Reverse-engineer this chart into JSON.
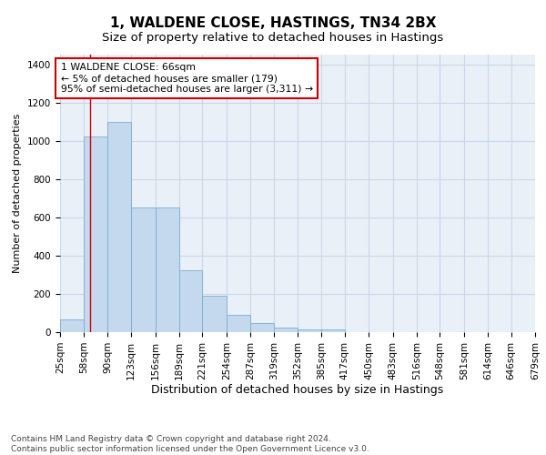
{
  "title": "1, WALDENE CLOSE, HASTINGS, TN34 2BX",
  "subtitle": "Size of property relative to detached houses in Hastings",
  "xlabel": "Distribution of detached houses by size in Hastings",
  "ylabel": "Number of detached properties",
  "bar_color": "#c5d9ee",
  "bar_edge_color": "#7aaed0",
  "grid_color": "#c8d8e8",
  "background_color": "#eaf0f8",
  "vline_x": 66,
  "vline_color": "#cc0000",
  "annotation_line1": "1 WALDENE CLOSE: 66sqm",
  "annotation_line2": "← 5% of detached houses are smaller (179)",
  "annotation_line3": "95% of semi-detached houses are larger (3,311) →",
  "annotation_box_color": "#ffffff",
  "annotation_box_edge": "#cc0000",
  "bins": [
    25,
    58,
    90,
    123,
    156,
    189,
    221,
    254,
    287,
    319,
    352,
    385,
    417,
    450,
    483,
    516,
    548,
    581,
    614,
    646,
    679
  ],
  "bar_heights": [
    65,
    1020,
    1100,
    650,
    650,
    325,
    190,
    90,
    48,
    25,
    15,
    12,
    0,
    0,
    0,
    0,
    0,
    0,
    0,
    0
  ],
  "ylim": [
    0,
    1450
  ],
  "yticks": [
    0,
    200,
    400,
    600,
    800,
    1000,
    1200,
    1400
  ],
  "footnote": "Contains HM Land Registry data © Crown copyright and database right 2024.\nContains public sector information licensed under the Open Government Licence v3.0.",
  "title_fontsize": 11,
  "subtitle_fontsize": 9.5,
  "xlabel_fontsize": 9,
  "ylabel_fontsize": 8,
  "tick_fontsize": 7.5,
  "footnote_fontsize": 6.5
}
